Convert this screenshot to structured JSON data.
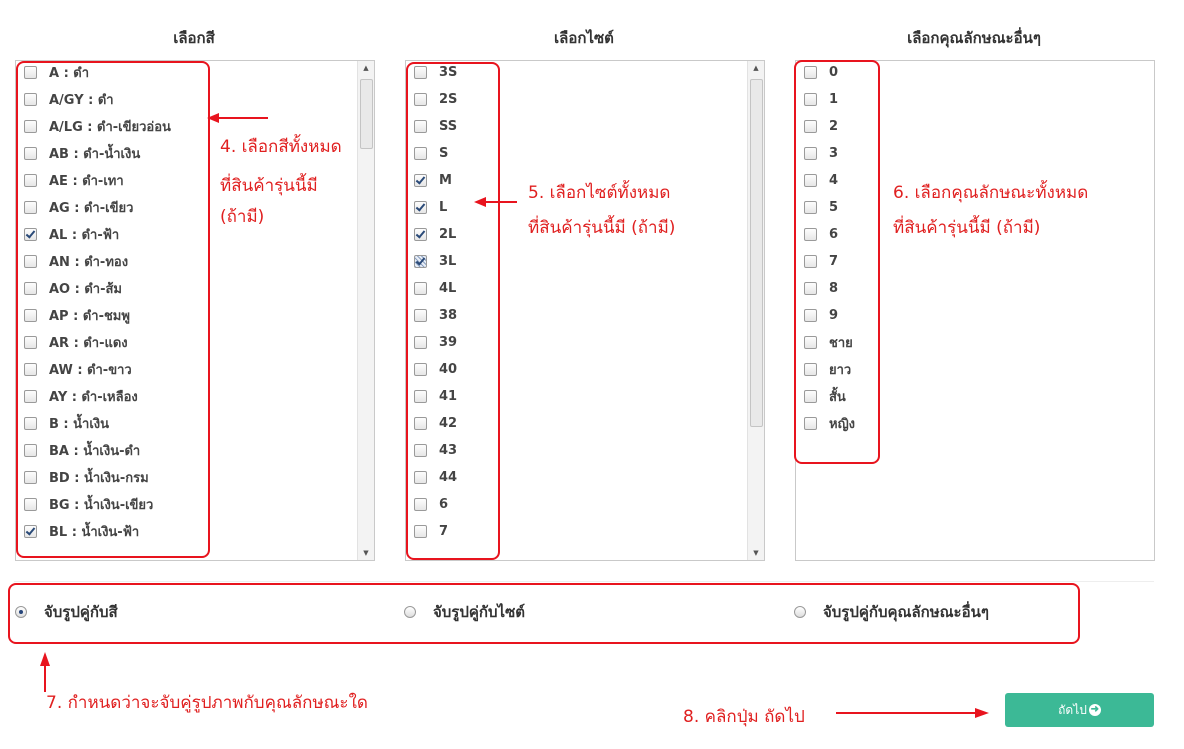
{
  "columns": {
    "color_title": "เลือกสี",
    "size_title": "เลือกไซต์",
    "other_title": "เลือกคุณลักษณะอื่นๆ"
  },
  "colors": [
    {
      "label": "A : ดำ",
      "checked": false
    },
    {
      "label": "A/GY : ดำ",
      "checked": false
    },
    {
      "label": "A/LG : ดำ-เขียวอ่อน",
      "checked": false
    },
    {
      "label": "AB : ดำ-น้ำเงิน",
      "checked": false
    },
    {
      "label": "AE : ดำ-เทา",
      "checked": false
    },
    {
      "label": "AG : ดำ-เขียว",
      "checked": false
    },
    {
      "label": "AL : ดำ-ฟ้า",
      "checked": true
    },
    {
      "label": "AN : ดำ-ทอง",
      "checked": false
    },
    {
      "label": "AO : ดำ-ส้ม",
      "checked": false
    },
    {
      "label": "AP : ดำ-ชมพู",
      "checked": false
    },
    {
      "label": "AR : ดำ-แดง",
      "checked": false
    },
    {
      "label": "AW : ดำ-ขาว",
      "checked": false
    },
    {
      "label": "AY : ดำ-เหลือง",
      "checked": false
    },
    {
      "label": "B : น้ำเงิน",
      "checked": false
    },
    {
      "label": "BA : น้ำเงิน-ดำ",
      "checked": false
    },
    {
      "label": "BD : น้ำเงิน-กรม",
      "checked": false
    },
    {
      "label": "BG : น้ำเงิน-เขียว",
      "checked": false
    },
    {
      "label": "BL : น้ำเงิน-ฟ้า",
      "checked": true
    }
  ],
  "sizes": [
    {
      "label": "3S",
      "state": "unchecked"
    },
    {
      "label": "2S",
      "state": "unchecked"
    },
    {
      "label": "SS",
      "state": "unchecked"
    },
    {
      "label": "S",
      "state": "unchecked"
    },
    {
      "label": "M",
      "state": "checked"
    },
    {
      "label": "L",
      "state": "checked"
    },
    {
      "label": "2L",
      "state": "checked"
    },
    {
      "label": "3L",
      "state": "partial"
    },
    {
      "label": "4L",
      "state": "unchecked"
    },
    {
      "label": "38",
      "state": "unchecked"
    },
    {
      "label": "39",
      "state": "unchecked"
    },
    {
      "label": "40",
      "state": "unchecked"
    },
    {
      "label": "41",
      "state": "unchecked"
    },
    {
      "label": "42",
      "state": "unchecked"
    },
    {
      "label": "43",
      "state": "unchecked"
    },
    {
      "label": "44",
      "state": "unchecked"
    },
    {
      "label": "6",
      "state": "unchecked"
    },
    {
      "label": "7",
      "state": "unchecked"
    }
  ],
  "others": [
    {
      "label": "0"
    },
    {
      "label": "1"
    },
    {
      "label": "2"
    },
    {
      "label": "3"
    },
    {
      "label": "4"
    },
    {
      "label": "5"
    },
    {
      "label": "6"
    },
    {
      "label": "7"
    },
    {
      "label": "8"
    },
    {
      "label": "9"
    },
    {
      "label": "ชาย"
    },
    {
      "label": "ยาว"
    },
    {
      "label": "สั้น"
    },
    {
      "label": "หญิง"
    }
  ],
  "annotations": {
    "step4_line1": "4. เลือกสีทั้งหมด",
    "step4_line2": "ที่สินค้ารุ่นนี้มี",
    "step4_line3": "(ถ้ามี)",
    "step5_line1": "5. เลือกไซต์ทั้งหมด",
    "step5_line2": "ที่สินค้ารุ่นนี้มี (ถ้ามี)",
    "step6_line1": "6. เลือกคุณลักษณะทั้งหมด",
    "step6_line2": "ที่สินค้ารุ่นนี้มี (ถ้ามี)",
    "step7": "7. กำหนดว่าจะจับคู่รูปภาพกับคุณลักษณะใด",
    "step8": "8. คลิกปุ่ม ถัดไป"
  },
  "match_options": [
    {
      "label": "จับรูปคู่กับสี",
      "selected": true
    },
    {
      "label": "จับรูปคู่กับไซต์",
      "selected": false
    },
    {
      "label": "จับรูปคู่กับคุณลักษณะอื่นๆ",
      "selected": false
    }
  ],
  "next_button": {
    "label": "ถัดไป",
    "icon": "arrow-circle-right-icon",
    "color": "#3cb996"
  },
  "accent_color": "#e8141e"
}
